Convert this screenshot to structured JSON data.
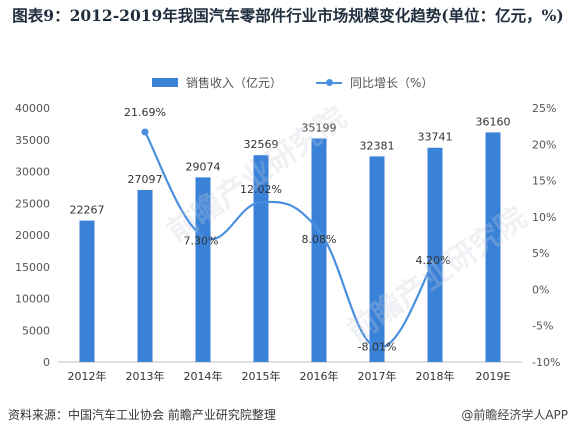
{
  "title": "图表9：2012-2019年我国汽车零部件行业市场规模变化趋势(单位：亿元，%)",
  "legend": {
    "bar_label": "销售收入（亿元）",
    "line_label": "同比增长（%）"
  },
  "colors": {
    "bar": "#3a82d8",
    "line": "#4a8fde",
    "axis_text": "#555555",
    "title": "#1f2d3d"
  },
  "watermark": "前瞻产业研究院",
  "footer": {
    "source": "资料来源：中国汽车工业协会 前瞻产业研究院整理",
    "brand": "@前瞻经济学人APP"
  },
  "chart_data": {
    "type": "bar",
    "categories": [
      "2012年",
      "2013年",
      "2014年",
      "2015年",
      "2016年",
      "2017年",
      "2018年",
      "2019E"
    ],
    "series": [
      {
        "name": "销售收入（亿元）",
        "type": "bar",
        "axis": "left",
        "values": [
          22267,
          27097,
          29074,
          32569,
          35199,
          32381,
          33741,
          36160
        ],
        "labels": [
          "22267",
          "27097",
          "29074",
          "32569",
          "35199",
          "32381",
          "33741",
          "36160"
        ]
      },
      {
        "name": "同比增长（%）",
        "type": "line",
        "axis": "right",
        "values": [
          null,
          21.69,
          7.3,
          12.02,
          8.08,
          -8.01,
          4.2,
          null
        ],
        "labels": [
          "",
          "21.69%",
          "7.30%",
          "12.02%",
          "8.08%",
          "-8.01%",
          "4.20%",
          ""
        ]
      }
    ],
    "y_left": {
      "ylim": [
        0,
        40000
      ],
      "ticks": [
        0,
        5000,
        10000,
        15000,
        20000,
        25000,
        30000,
        35000,
        40000
      ],
      "tick_labels": [
        "0",
        "5000",
        "10000",
        "15000",
        "20000",
        "25000",
        "30000",
        "35000",
        "40000"
      ]
    },
    "y_right": {
      "ylim": [
        -10,
        25
      ],
      "ticks": [
        -10,
        -5,
        0,
        5,
        10,
        15,
        20,
        25
      ],
      "tick_labels": [
        "-10%",
        "-5%",
        "0%",
        "5%",
        "10%",
        "15%",
        "20%",
        "25%"
      ]
    },
    "grid": false,
    "legend_position": "top-center"
  }
}
